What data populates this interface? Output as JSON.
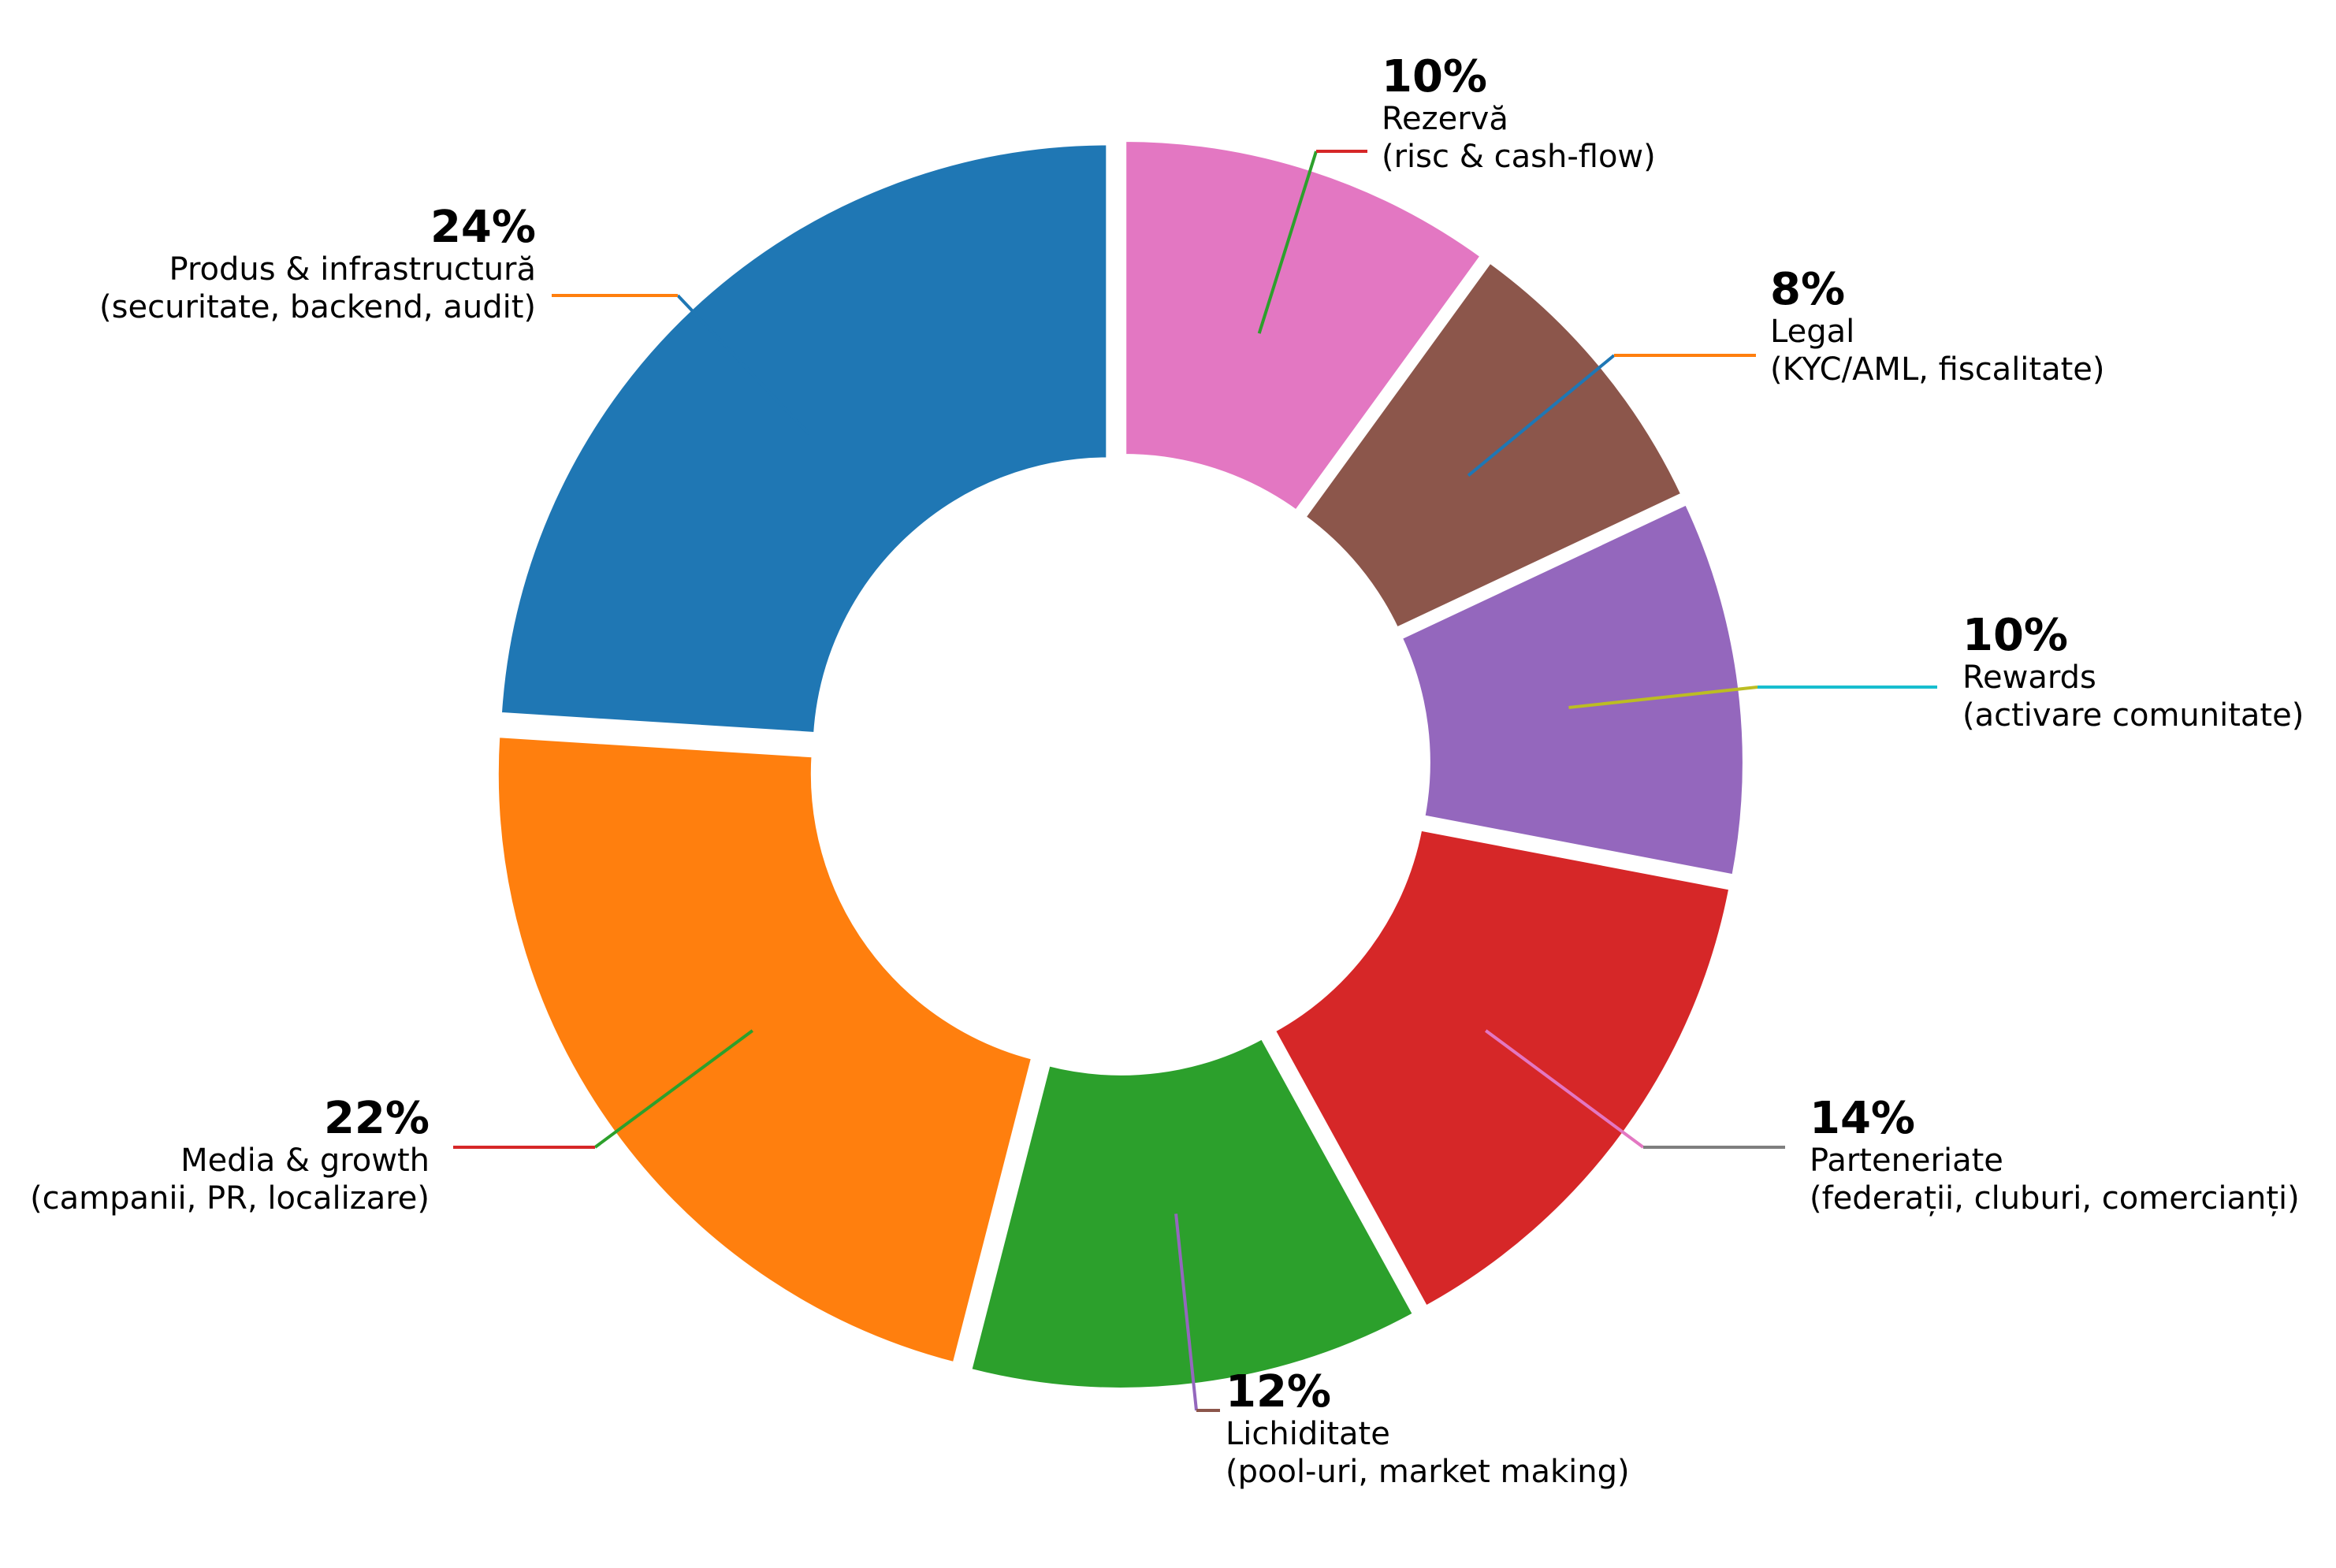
{
  "chart_data": {
    "type": "pie",
    "donut": true,
    "title": "",
    "slices": [
      {
        "name": "Rezervă",
        "detail": "(risc & cash-flow)",
        "value": 10,
        "label": "10%",
        "color": "#e377c2",
        "leader_color": "#2ca02c",
        "tail_color": "#d62728"
      },
      {
        "name": "Legal",
        "detail": "(KYC/AML, fiscalitate)",
        "value": 8,
        "label": "8%",
        "color": "#8c564b",
        "leader_color": "#1f77b4",
        "tail_color": "#ff7f0e"
      },
      {
        "name": "Rewards",
        "detail": "(activare comunitate)",
        "value": 10,
        "label": "10%",
        "color": "#9467bd",
        "leader_color": "#bcbd22",
        "tail_color": "#17becf"
      },
      {
        "name": "Parteneriate",
        "detail": "(federații, cluburi, comercianți)",
        "value": 14,
        "label": "14%",
        "color": "#d62728",
        "leader_color": "#e377c2",
        "tail_color": "#7f7f7f"
      },
      {
        "name": "Lichiditate",
        "detail": "(pool-uri, market making)",
        "value": 12,
        "label": "12%",
        "color": "#2ca02c",
        "leader_color": "#9467bd",
        "tail_color": "#8c564b"
      },
      {
        "name": "Media & growth",
        "detail": "(campanii, PR, localizare)",
        "value": 22,
        "label": "22%",
        "color": "#ff7f0e",
        "leader_color": "#2ca02c",
        "tail_color": "#d62728"
      },
      {
        "name": "Produs & infrastructură",
        "detail": "(securitate, backend, audit)",
        "value": 24,
        "label": "24%",
        "color": "#1f77b4",
        "leader_color": "#1f77b4",
        "tail_color": "#ff7f0e"
      }
    ]
  }
}
